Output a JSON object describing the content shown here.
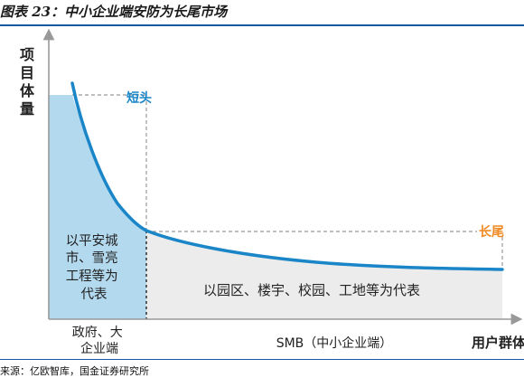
{
  "title": "图表 23：中小企业端安防为长尾市场",
  "y_axis_label": "项目体量",
  "x_axis_label": "用户群体",
  "head_label": "短头",
  "tail_label": "长尾",
  "left_region": {
    "lines": [
      "以平安城",
      "市、雪亮",
      "工程等为",
      "代表"
    ],
    "bottom_lines": [
      "政府、大",
      "企业端"
    ]
  },
  "right_region": {
    "text": "以园区、楼宇、校园、工地等为代表",
    "bottom_text": "SMB（中小企业端）"
  },
  "source": "来源：亿欧智库，国金证券研究所",
  "colors": {
    "curve": "#1a86c8",
    "head_fill": "#b3d9ef",
    "tail_fill": "#ececec",
    "head_label": "#1a86c8",
    "tail_label": "#f08a24",
    "rule": "#0f5aa3"
  }
}
